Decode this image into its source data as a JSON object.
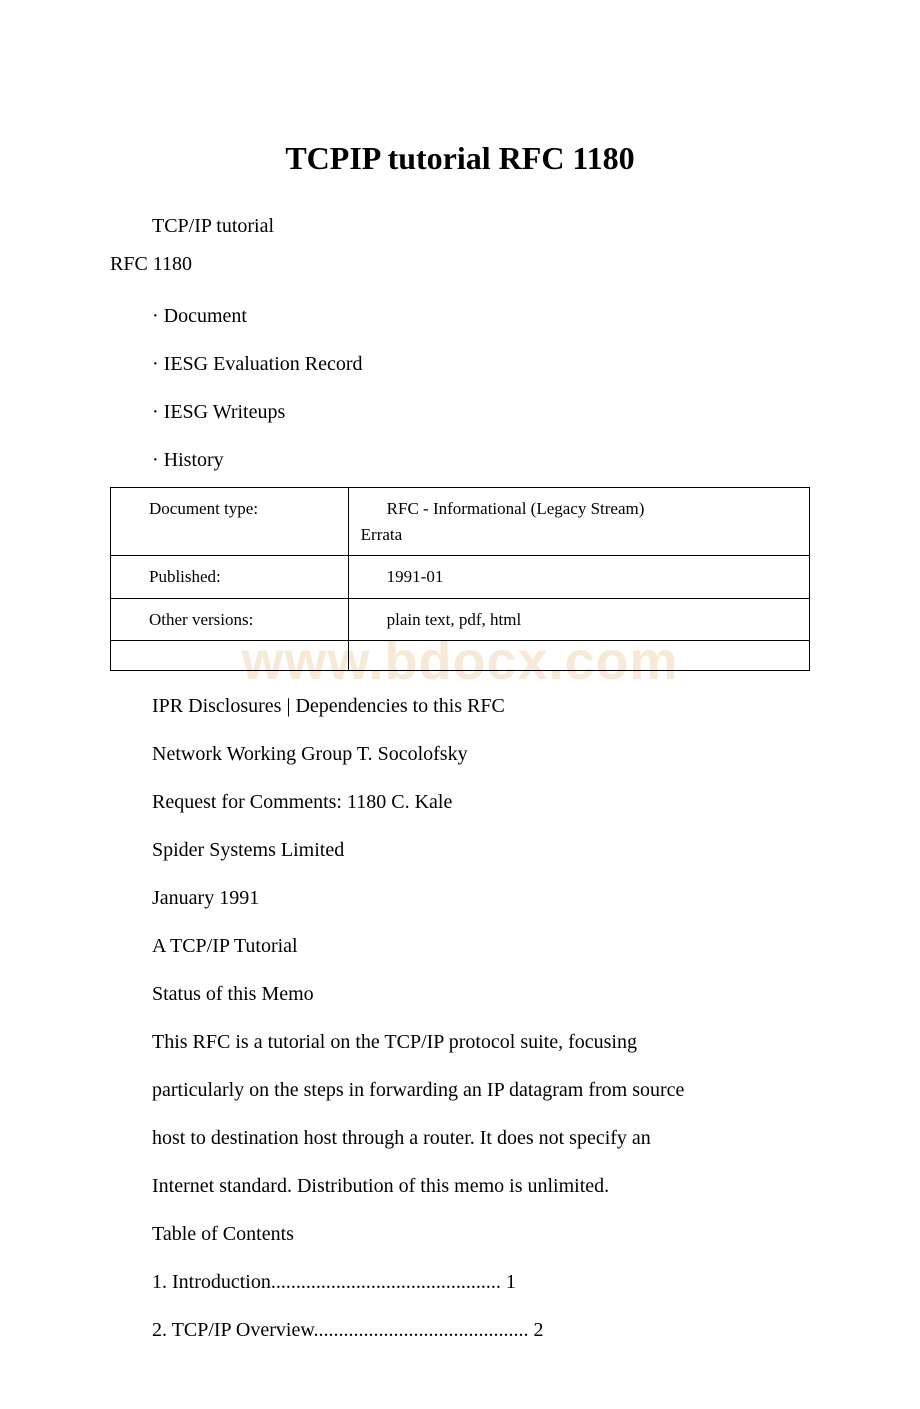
{
  "title": "TCPIP tutorial RFC 1180",
  "watermark": "www.bdocx.com",
  "header": {
    "line1": "TCP/IP tutorial",
    "line2": "RFC 1180"
  },
  "nav": [
    "· Document",
    "· IESG Evaluation Record",
    "· IESG Writeups",
    "· History"
  ],
  "table": {
    "rows": [
      {
        "label": "Document type:",
        "value_line1": "RFC - Informational (Legacy Stream)",
        "value_line2": "Errata"
      },
      {
        "label": "Published:",
        "value_line1": "1991-01",
        "value_line2": ""
      },
      {
        "label": "Other versions:",
        "value_line1": "plain text, pdf, html",
        "value_line2": ""
      }
    ]
  },
  "body": [
    "IPR Disclosures | Dependencies to this RFC",
    "Network Working Group T. Socolofsky",
    "Request for Comments: 1180 C. Kale",
    " Spider Systems Limited",
    " January 1991",
    " A TCP/IP Tutorial",
    "Status of this Memo",
    " This RFC is a tutorial on the TCP/IP protocol suite, focusing",
    " particularly on the steps in forwarding an IP datagram from source",
    " host to destination host through a router. It does not specify an",
    " Internet standard. Distribution of this memo is unlimited.",
    "Table of Contents",
    " 1. Introduction.............................................. 1",
    " 2. TCP/IP Overview........................................... 2"
  ]
}
